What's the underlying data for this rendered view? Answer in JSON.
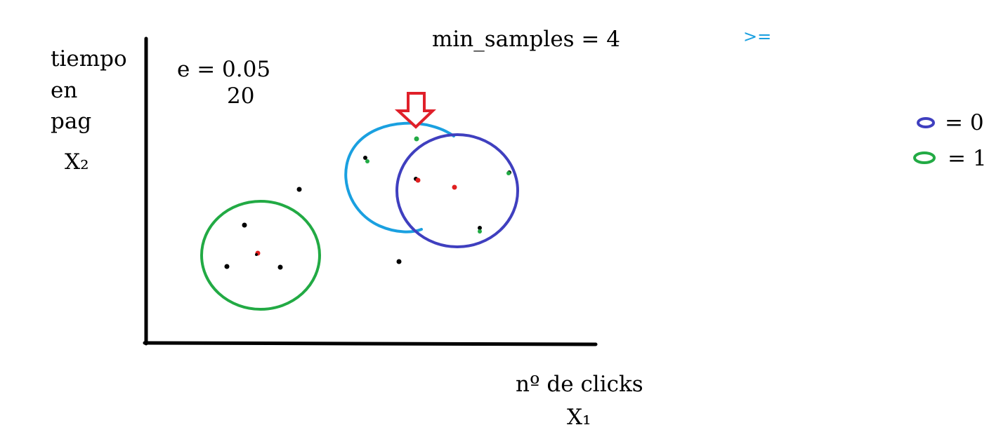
{
  "y_label": [
    "tiempo",
    "en",
    "pag"
  ],
  "y_variable": "X₂",
  "x_label": "nº de clicks",
  "x_variable": "X₁",
  "epsilon": "e = 0.05",
  "epsilon_alt": "20",
  "min_samples": "min_samples = 4",
  "comparison_note": ">=",
  "legend": [
    {
      "label": "= 0",
      "color": "#3f3fbf"
    },
    {
      "label": "= 1",
      "color": "#22aa44"
    }
  ],
  "colors": {
    "axis": "#000000",
    "cluster_0": "#3f3fbf",
    "cluster_1": "#22aa44",
    "neighborhood": "#1aa0e0",
    "arrow": "#e0202a",
    "core_point": "#e02020",
    "border_point": "#22aa44",
    "noise_point": "#000000"
  }
}
